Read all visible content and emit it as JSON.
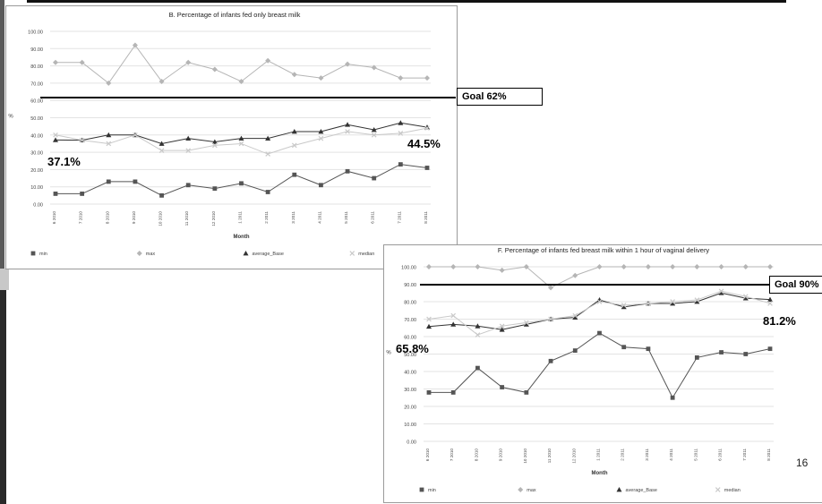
{
  "chart_data": [
    {
      "type": "line",
      "title": "B. Percentage of infants fed only breast milk",
      "xlabel": "Month",
      "ylabel": "%",
      "ylim": [
        0,
        100
      ],
      "yticks": [
        "0.00",
        "10.00",
        "20.00",
        "30.00",
        "40.00",
        "50.00",
        "60.00",
        "70.00",
        "80.00",
        "90.00",
        "100.00"
      ],
      "categories": [
        "6 2010",
        "7 2010",
        "8 2010",
        "9 2010",
        "10 2010",
        "11 2010",
        "12 2010",
        "1 2011",
        "2 2011",
        "3 2011",
        "4 2011",
        "5 2011",
        "6 2011",
        "7 2011",
        "8 2011"
      ],
      "legend_position": "bottom",
      "series": [
        {
          "name": "min",
          "color": "#555555",
          "marker": "square",
          "values": [
            6,
            6,
            13,
            13,
            5,
            11,
            9,
            12,
            7,
            17,
            11,
            19,
            15,
            23,
            21
          ]
        },
        {
          "name": "max",
          "color": "#b5b5b5",
          "marker": "diamond",
          "values": [
            82,
            82,
            70,
            92,
            71,
            82,
            78,
            71,
            83,
            75,
            73,
            81,
            79,
            73,
            73
          ]
        },
        {
          "name": "average_Base",
          "color": "#333333",
          "marker": "triangle",
          "values": [
            37.1,
            37,
            40,
            40,
            35,
            38,
            36,
            38,
            38,
            42,
            42,
            46,
            43,
            47,
            44.5
          ]
        },
        {
          "name": "median",
          "color": "#c9c9c9",
          "marker": "x",
          "values": [
            40,
            37,
            35,
            40,
            31,
            31,
            34,
            35,
            29,
            34,
            38,
            42,
            40,
            41,
            44
          ]
        }
      ]
    },
    {
      "type": "line",
      "title": "F. Percentage of infants fed breast milk within 1 hour of vaginal delivery",
      "xlabel": "Month",
      "ylabel": "%",
      "ylim": [
        0,
        100
      ],
      "yticks": [
        "0.00",
        "10.00",
        "20.00",
        "30.00",
        "40.00",
        "50.00",
        "60.00",
        "70.00",
        "80.00",
        "90.00",
        "100.00"
      ],
      "categories": [
        "6 2010",
        "7 2010",
        "8 2010",
        "9 2010",
        "10 2010",
        "11 2010",
        "12 2010",
        "1 2011",
        "2 2011",
        "3 2011",
        "4 2011",
        "5 2011",
        "6 2011",
        "7 2011",
        "8 2011"
      ],
      "legend_position": "bottom",
      "series": [
        {
          "name": "min",
          "color": "#555555",
          "marker": "square",
          "values": [
            28,
            28,
            42,
            31,
            28,
            46,
            52,
            62,
            54,
            53,
            25,
            48,
            51,
            50,
            53
          ]
        },
        {
          "name": "max",
          "color": "#b5b5b5",
          "marker": "diamond",
          "values": [
            100,
            100,
            100,
            98,
            100,
            88,
            95,
            100,
            100,
            100,
            100,
            100,
            100,
            100,
            100
          ]
        },
        {
          "name": "average_Base",
          "color": "#333333",
          "marker": "triangle",
          "values": [
            65.8,
            67,
            66,
            64,
            67,
            70,
            71,
            81,
            77,
            79,
            79,
            80,
            85,
            82,
            81.2
          ]
        },
        {
          "name": "median",
          "color": "#c9c9c9",
          "marker": "x",
          "values": [
            70,
            72,
            61,
            66,
            68,
            70,
            72,
            80,
            78,
            79,
            80,
            81,
            86,
            83,
            79
          ]
        }
      ]
    }
  ],
  "overlays": {
    "goal_b": {
      "label": "Goal 62%",
      "value": 62
    },
    "goal_f": {
      "label": "Goal 90%",
      "value": 90
    },
    "ann_b_start": "37.1%",
    "ann_b_end": "44.5%",
    "ann_f_start": "65.8%",
    "ann_f_end": "81.2%"
  },
  "page_number": "16"
}
